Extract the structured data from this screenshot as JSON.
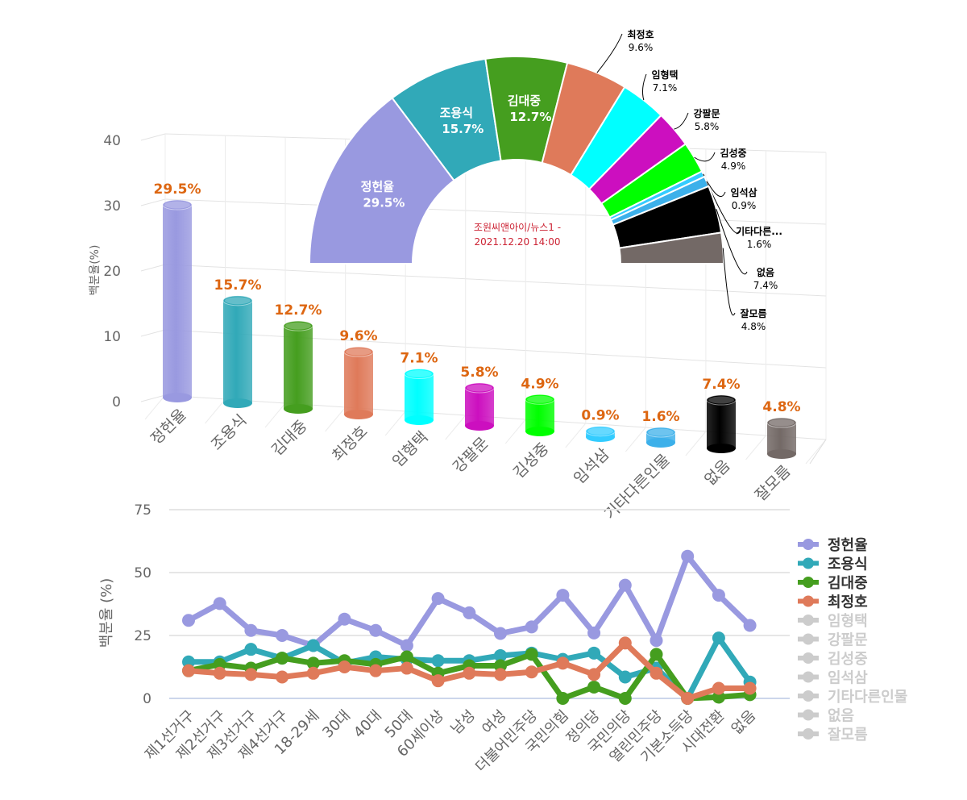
{
  "chart_data": [
    {
      "type": "bar",
      "subtype": "3d-cylinder",
      "ylabel": "백분율(%)",
      "ylim": [
        0,
        40
      ],
      "yticks": [
        "0",
        "10",
        "20",
        "30",
        "40"
      ],
      "categories": [
        "정헌율",
        "조용식",
        "김대중",
        "최정호",
        "임형택",
        "강팔문",
        "김성중",
        "임석삼",
        "기타다른인물",
        "없음",
        "잘모름"
      ],
      "values": [
        29.5,
        15.7,
        12.7,
        9.6,
        7.1,
        5.8,
        4.9,
        0.9,
        1.6,
        7.4,
        4.8
      ],
      "data_labels": [
        "29.5%",
        "15.7%",
        "12.7%",
        "9.6%",
        "7.1%",
        "5.8%",
        "4.9%",
        "0.9%",
        "1.6%",
        "7.4%",
        "4.8%"
      ],
      "colors": [
        "#9999e0",
        "#31a9b8",
        "#459e1f",
        "#df7a5a",
        "#00ffff",
        "#cc0fbf",
        "#00ff00",
        "#33ccff",
        "#3cb0ea",
        "#000000",
        "#736966"
      ],
      "label_color": "#dd6611",
      "grid": true
    },
    {
      "type": "pie",
      "subtype": "half-donut",
      "center_text": [
        "조원씨앤아이/뉴스1 -",
        "2021.12.20 14:00"
      ],
      "center_text_color": "#cc2233",
      "slices": [
        {
          "name": "정헌율",
          "value": 29.5,
          "label": "29.5%",
          "color": "#9999e0"
        },
        {
          "name": "조용식",
          "value": 15.7,
          "label": "15.7%",
          "color": "#31a9b8"
        },
        {
          "name": "김대중",
          "value": 12.7,
          "label": "12.7%",
          "color": "#459e1f"
        },
        {
          "name": "최정호",
          "value": 9.6,
          "label": "9.6%",
          "color": "#df7a5a"
        },
        {
          "name": "임형택",
          "value": 7.1,
          "label": "7.1%",
          "color": "#00ffff"
        },
        {
          "name": "강팔문",
          "value": 5.8,
          "label": "5.8%",
          "color": "#cc0fbf"
        },
        {
          "name": "김성중",
          "value": 4.9,
          "label": "4.9%",
          "color": "#00ff00"
        },
        {
          "name": "임석삼",
          "value": 0.9,
          "label": "0.9%",
          "color": "#33ccff"
        },
        {
          "name": "기타다른...",
          "value": 1.6,
          "label": "1.6%",
          "color": "#3cb0ea"
        },
        {
          "name": "없음",
          "value": 7.4,
          "label": "7.4%",
          "color": "#000000"
        },
        {
          "name": "잘모름",
          "value": 4.8,
          "label": "4.8%",
          "color": "#736966"
        }
      ]
    },
    {
      "type": "line",
      "ylabel": "백분율 (%)",
      "ylim": [
        0,
        75
      ],
      "yticks": [
        "0",
        "25",
        "50",
        "75"
      ],
      "x": [
        "제1선거구",
        "제2선거구",
        "제3선거구",
        "제4선거구",
        "18-29세",
        "30대",
        "40대",
        "50대",
        "60세이상",
        "남성",
        "여성",
        "더불어민주당",
        "국민의힘",
        "정의당",
        "국민의당",
        "열린민주당",
        "기본소득당",
        "시대전환",
        "없음"
      ],
      "series": [
        {
          "name": "정헌율",
          "color": "#9999e0",
          "visible": true,
          "values": [
            31,
            37.7,
            27,
            25,
            21,
            31.5,
            27,
            21,
            39.7,
            34,
            25.8,
            28.4,
            41,
            26,
            45,
            23,
            56.5,
            41,
            29
          ]
        },
        {
          "name": "조용식",
          "color": "#31a9b8",
          "visible": true,
          "values": [
            14.5,
            14.5,
            19.5,
            16,
            21,
            14,
            16.5,
            15.5,
            15,
            15,
            17,
            18,
            15.5,
            18,
            8.5,
            12,
            0,
            24,
            6.5
          ]
        },
        {
          "name": "김대중",
          "color": "#459e1f",
          "visible": true,
          "values": [
            11,
            13.5,
            12,
            16,
            14,
            15,
            13.5,
            16.5,
            10,
            13,
            13,
            17.5,
            0,
            4.5,
            0,
            17.5,
            0,
            0.5,
            1.5
          ]
        },
        {
          "name": "최정호",
          "color": "#df7a5a",
          "visible": true,
          "values": [
            11,
            10,
            9.5,
            8.5,
            10,
            12.5,
            11,
            12,
            7,
            10,
            9.5,
            10.5,
            14,
            9.5,
            22,
            10,
            0,
            4,
            4
          ]
        },
        {
          "name": "임형택",
          "color": "#cccccc",
          "visible": false
        },
        {
          "name": "강팔문",
          "color": "#cccccc",
          "visible": false
        },
        {
          "name": "김성중",
          "color": "#cccccc",
          "visible": false
        },
        {
          "name": "임석삼",
          "color": "#cccccc",
          "visible": false
        },
        {
          "name": "기타다른인물",
          "color": "#cccccc",
          "visible": false
        },
        {
          "name": "없음",
          "color": "#cccccc",
          "visible": false
        },
        {
          "name": "잘모름",
          "color": "#cccccc",
          "visible": false
        }
      ],
      "legend": "right",
      "grid": true
    }
  ]
}
